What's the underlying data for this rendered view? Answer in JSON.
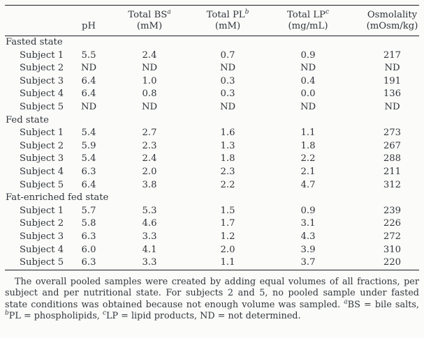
{
  "table": {
    "header": {
      "ph_label": "pH",
      "cols": [
        {
          "name": "Total BS",
          "sup": "a",
          "unit": "(mM)"
        },
        {
          "name": "Total PL",
          "sup": "b",
          "unit": "(mM)"
        },
        {
          "name": "Total LP",
          "sup": "c",
          "unit": "(mg/mL)"
        },
        {
          "name": "Osmolality",
          "sup": "",
          "unit": "(mOsm/kg)"
        }
      ]
    },
    "sections": [
      {
        "title": "Fasted state",
        "rows": [
          {
            "label": "Subject 1",
            "values": [
              "5.5",
              "2.4",
              "0.7",
              "0.9",
              "217"
            ]
          },
          {
            "label": "Subject 2",
            "values": [
              "ND",
              "ND",
              "ND",
              "ND",
              "ND"
            ]
          },
          {
            "label": "Subject 3",
            "values": [
              "6.4",
              "1.0",
              "0.3",
              "0.4",
              "191"
            ]
          },
          {
            "label": "Subject 4",
            "values": [
              "6.4",
              "0.8",
              "0.3",
              "0.0",
              "136"
            ]
          },
          {
            "label": "Subject 5",
            "values": [
              "ND",
              "ND",
              "ND",
              "ND",
              "ND"
            ]
          }
        ]
      },
      {
        "title": "Fed state",
        "rows": [
          {
            "label": "Subject 1",
            "values": [
              "5.4",
              "2.7",
              "1.6",
              "1.1",
              "273"
            ]
          },
          {
            "label": "Subject 2",
            "values": [
              "5.9",
              "2.3",
              "1.3",
              "1.8",
              "267"
            ]
          },
          {
            "label": "Subject 3",
            "values": [
              "5.4",
              "2.4",
              "1.8",
              "2.2",
              "288"
            ]
          },
          {
            "label": "Subject 4",
            "values": [
              "6.3",
              "2.0",
              "2.3",
              "2.1",
              "211"
            ]
          },
          {
            "label": "Subject 5",
            "values": [
              "6.4",
              "3.8",
              "2.2",
              "4.7",
              "312"
            ]
          }
        ]
      },
      {
        "title": "Fat-enriched fed state",
        "rows": [
          {
            "label": "Subject 1",
            "values": [
              "5.7",
              "5.3",
              "1.5",
              "0.9",
              "239"
            ]
          },
          {
            "label": "Subject 2",
            "values": [
              "5.8",
              "4.6",
              "1.7",
              "3.1",
              "226"
            ]
          },
          {
            "label": "Subject 3",
            "values": [
              "6.3",
              "3.3",
              "1.2",
              "4.3",
              "272"
            ]
          },
          {
            "label": "Subject 4",
            "values": [
              "6.0",
              "4.1",
              "2.0",
              "3.9",
              "310"
            ]
          },
          {
            "label": "Subject 5",
            "values": [
              "6.3",
              "3.3",
              "1.1",
              "3.7",
              "220"
            ]
          }
        ]
      }
    ]
  },
  "footnote": {
    "segments": [
      {
        "text": "The overall pooled samples were created by adding equal volumes of all fractions, per subject and per nutritional state. For subjects 2 and 5, no pooled sample under fasted state conditions was obtained because not enough volume was sampled. "
      },
      {
        "sup": "a"
      },
      {
        "text": "BS = bile salts, "
      },
      {
        "sup": "b"
      },
      {
        "text": "PL = phospholipids, "
      },
      {
        "sup": "c"
      },
      {
        "text": "LP = lipid products, ND = not determined."
      }
    ]
  }
}
